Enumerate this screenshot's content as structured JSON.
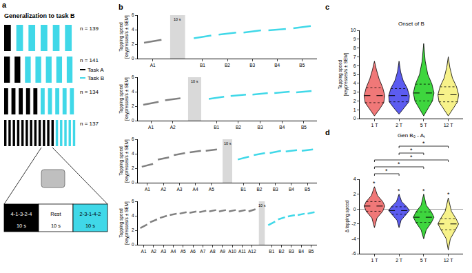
{
  "schematic": {
    "panel": "a",
    "title": "Generalization to task B",
    "legend": [
      {
        "name": "Task A",
        "color": "#000000"
      },
      {
        "name": "Task B",
        "color": "#40d8e8"
      }
    ],
    "rows": [
      {
        "trials_A": 1,
        "trials_B": 5,
        "label": "n = 139"
      },
      {
        "trials_A": 2,
        "trials_B": 5,
        "label": "n = 141"
      },
      {
        "trials_A": 5,
        "trials_B": 5,
        "label": "n = 134"
      },
      {
        "trials_A": 12,
        "trials_B": 5,
        "label": "n = 137"
      }
    ],
    "sequence": [
      {
        "text": "4-1-3-2-4",
        "duration": "10 s",
        "color": "#000000"
      },
      {
        "text": "Rest",
        "duration": "10 s",
        "color": "#ffffff"
      },
      {
        "text": "2-3-1-4-2",
        "duration": "10 s",
        "color": "#40d8e8"
      }
    ]
  },
  "chart_data": [
    {
      "type": "line",
      "panel": "b",
      "ylabel": "Tapping speed [keypresses/s ± SEM]",
      "categories": [
        "A1",
        null,
        "B1",
        "B2",
        "B3",
        "B4",
        "B5"
      ],
      "rest_label": "10 s",
      "ylim": [
        0,
        6
      ],
      "yticks": [
        0,
        2,
        4,
        6
      ],
      "series": [
        {
          "color": "#808080",
          "values": [
            [
              2.2,
              2.6
            ],
            null,
            null,
            null,
            null,
            null,
            null
          ]
        },
        {
          "color": "#40d8e8",
          "values": [
            null,
            null,
            [
              2.8,
              3.2
            ],
            [
              3.3,
              3.6
            ],
            [
              3.6,
              3.9
            ],
            [
              3.9,
              4.1
            ],
            [
              4.2,
              4.5
            ]
          ]
        }
      ]
    },
    {
      "type": "line",
      "ylabel": "Tapping speed [keypresses/s ± SEM]",
      "categories": [
        "A1",
        "A2",
        null,
        "B1",
        "B2",
        "B3",
        "B4",
        "B5"
      ],
      "rest_label": "10 s",
      "ylim": [
        0,
        6
      ],
      "yticks": [
        0,
        2,
        4,
        6
      ],
      "series": [
        {
          "color": "#808080",
          "values": [
            [
              2.2,
              2.6
            ],
            [
              2.8,
              3.1
            ],
            null,
            null,
            null,
            null,
            null,
            null
          ]
        },
        {
          "color": "#40d8e8",
          "values": [
            null,
            null,
            null,
            [
              3.0,
              3.3
            ],
            [
              3.4,
              3.6
            ],
            [
              3.6,
              3.8
            ],
            [
              3.8,
              4.0
            ],
            [
              3.9,
              4.1
            ]
          ]
        }
      ]
    },
    {
      "type": "line",
      "ylabel": "Tapping speed [keypresses/s ± SEM]",
      "categories": [
        "A1",
        "A2",
        "A3",
        "A4",
        "A5",
        null,
        "B1",
        "B2",
        "B3",
        "B4",
        "B5"
      ],
      "rest_label": "10 s",
      "ylim": [
        0,
        6
      ],
      "yticks": [
        0,
        2,
        4,
        6
      ],
      "series": [
        {
          "color": "#808080",
          "values": [
            [
              2.2,
              2.6
            ],
            [
              3.2,
              3.5
            ],
            [
              3.8,
              4.1
            ],
            [
              4.2,
              4.4
            ],
            [
              4.4,
              4.6
            ],
            null,
            null,
            null,
            null,
            null,
            null
          ]
        },
        {
          "color": "#40d8e8",
          "values": [
            null,
            null,
            null,
            null,
            null,
            null,
            [
              3.2,
              3.6
            ],
            [
              3.8,
              4.1
            ],
            [
              4.1,
              4.4
            ],
            [
              4.3,
              4.5
            ],
            [
              4.4,
              4.6
            ]
          ]
        }
      ]
    },
    {
      "type": "line",
      "ylabel": "Tapping speed [keypresses/s ± SEM]",
      "categories": [
        "A1",
        "A2",
        "A3",
        "A4",
        "A5",
        "A6",
        "A7",
        "A8",
        "A9",
        "A10",
        "A11",
        "A12",
        null,
        "B1",
        "B2",
        "B3",
        "B4",
        "B5"
      ],
      "rest_label": "10 s",
      "ylim": [
        0,
        6
      ],
      "yticks": [
        0,
        2,
        4,
        6
      ],
      "series": [
        {
          "color": "#808080",
          "values": [
            [
              2.3,
              2.8
            ],
            [
              3.1,
              3.5
            ],
            [
              3.7,
              4.0
            ],
            [
              4.1,
              4.3
            ],
            [
              4.3,
              4.5
            ],
            [
              4.4,
              4.6
            ],
            [
              4.5,
              4.7
            ],
            [
              4.6,
              4.8
            ],
            [
              4.6,
              4.8
            ],
            [
              4.6,
              4.8
            ],
            [
              4.6,
              4.8
            ],
            [
              4.6,
              4.9
            ],
            null,
            null,
            null,
            null,
            null,
            null
          ]
        },
        {
          "color": "#40d8e8",
          "values": [
            null,
            null,
            null,
            null,
            null,
            null,
            null,
            null,
            null,
            null,
            null,
            null,
            null,
            [
              2.7,
              3.2
            ],
            [
              3.5,
              3.8
            ],
            [
              3.9,
              4.1
            ],
            [
              4.1,
              4.3
            ],
            [
              4.3,
              4.5
            ]
          ]
        }
      ]
    },
    {
      "type": "violin",
      "panel": "c",
      "title": "Onset of B",
      "ylabel": "Tapping speed [keypresses/s ± SEM]",
      "categories": [
        "1 T",
        "2 T",
        "5 T",
        "12 T"
      ],
      "ylim": [
        0,
        10
      ],
      "yticks": [
        0,
        1,
        2,
        3,
        4,
        5,
        6,
        7,
        8,
        9,
        10
      ],
      "series": [
        {
          "color": "#f07878",
          "median": 2.6,
          "quartiles": [
            1.8,
            3.5
          ],
          "profile": {
            "y": [
              0.3,
              1,
              1.8,
              2.6,
              3.5,
              4.5,
              5.5,
              6.5
            ],
            "width": [
              0,
              0.45,
              0.9,
              1,
              0.8,
              0.45,
              0.2,
              0
            ]
          }
        },
        {
          "color": "#5c5cf0",
          "median": 2.6,
          "quartiles": [
            1.9,
            3.4
          ],
          "profile": {
            "y": [
              0.5,
              1.2,
              1.9,
              2.6,
              3.4,
              4.3,
              5.3,
              6.5
            ],
            "width": [
              0,
              0.5,
              0.95,
              1,
              0.8,
              0.4,
              0.15,
              0
            ]
          }
        },
        {
          "color": "#3ed63e",
          "median": 2.9,
          "quartiles": [
            2.0,
            3.9
          ],
          "profile": {
            "y": [
              0.3,
              1.2,
              2.0,
              2.9,
              3.9,
              5,
              6.5,
              8.5
            ],
            "width": [
              0,
              0.45,
              0.85,
              1,
              0.8,
              0.4,
              0.15,
              0
            ]
          }
        },
        {
          "color": "#f7f28a",
          "median": 2.7,
          "quartiles": [
            1.9,
            3.6
          ],
          "profile": {
            "y": [
              0.3,
              1.1,
              1.9,
              2.7,
              3.6,
              4.6,
              5.8,
              7
            ],
            "width": [
              0,
              0.45,
              0.9,
              1,
              0.8,
              0.4,
              0.15,
              0
            ]
          }
        }
      ]
    },
    {
      "type": "violin",
      "panel": "d",
      "title": "Gen B₀ - Aₜ",
      "ylabel": "Δ tapping speed",
      "categories": [
        "1 T",
        "2 T",
        "5 T",
        "12 T"
      ],
      "ylim": [
        -6,
        4
      ],
      "yticks": [
        -6,
        -4,
        -2,
        0,
        2,
        4
      ],
      "series": [
        {
          "color": "#f07878",
          "median": 0.4,
          "quartiles": [
            -0.3,
            1.0
          ],
          "significance": "*",
          "profile": {
            "y": [
              -2.5,
              -1.2,
              -0.3,
              0.4,
              1.0,
              1.8,
              3
            ],
            "width": [
              0,
              0.25,
              0.8,
              1,
              0.8,
              0.3,
              0
            ]
          }
        },
        {
          "color": "#5c5cf0",
          "median": -0.2,
          "quartiles": [
            -0.7,
            0.3
          ],
          "significance": "*",
          "profile": {
            "y": [
              -2.5,
              -1.5,
              -0.7,
              -0.2,
              0.3,
              1,
              2
            ],
            "width": [
              0,
              0.2,
              0.7,
              1,
              0.75,
              0.25,
              0
            ]
          }
        },
        {
          "color": "#3ed63e",
          "median": -1.1,
          "quartiles": [
            -1.8,
            -0.4
          ],
          "significance": "*",
          "profile": {
            "y": [
              -4,
              -2.8,
              -1.8,
              -1.1,
              -0.4,
              0.5,
              2
            ],
            "width": [
              0,
              0.25,
              0.75,
              1,
              0.75,
              0.25,
              0
            ]
          }
        },
        {
          "color": "#f7f28a",
          "median": -2.0,
          "quartiles": [
            -2.8,
            -1.3
          ],
          "significance": "*",
          "profile": {
            "y": [
              -5.5,
              -4,
              -2.8,
              -2.0,
              -1.3,
              -0.3,
              1.5
            ],
            "width": [
              0,
              0.2,
              0.7,
              1,
              0.75,
              0.3,
              0
            ]
          }
        }
      ],
      "comparisons": [
        {
          "pair": [
            "1 T",
            "2 T"
          ],
          "label": "*"
        },
        {
          "pair": [
            "1 T",
            "5 T"
          ],
          "label": "*"
        },
        {
          "pair": [
            "1 T",
            "12 T"
          ],
          "label": "*"
        },
        {
          "pair": [
            "2 T",
            "5 T"
          ],
          "label": "*"
        },
        {
          "pair": [
            "2 T",
            "12 T"
          ],
          "label": "*"
        }
      ]
    }
  ]
}
